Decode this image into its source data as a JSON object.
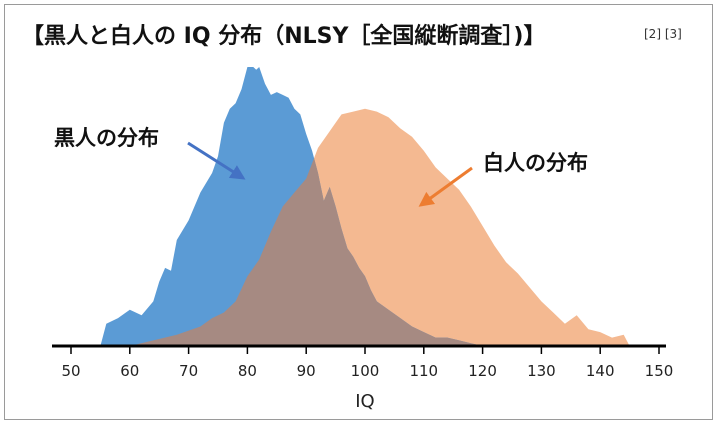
{
  "title": "【黒人と白人の IQ 分布（NLSY［全国縦断調査］)】",
  "references": "[2] [3]",
  "chart_data": {
    "type": "area",
    "title": "【黒人と白人の IQ 分布（NLSY［全国縦断調査］)】",
    "xlabel": "IQ",
    "ylabel": "",
    "xlim": [
      50,
      150
    ],
    "x_ticks": [
      50,
      60,
      70,
      80,
      90,
      100,
      110,
      120,
      130,
      140,
      150
    ],
    "y_axis_shown": false,
    "grid": false,
    "legend": "none",
    "annotations": [
      {
        "text": "黒人の分布",
        "series": "black"
      },
      {
        "text": "白人の分布",
        "series": "white"
      }
    ],
    "colors": {
      "black": "#5b9bd5",
      "white": "#f4b991",
      "overlap": "#a68a82",
      "black_arrow": "#4472c4",
      "white_arrow": "#ed7d31",
      "axis": "#000000"
    },
    "series": [
      {
        "key": "black",
        "x": [
          55,
          56,
          58,
          60,
          62,
          64,
          65,
          66,
          67,
          68,
          70,
          72,
          74,
          75,
          76,
          77,
          78,
          79,
          80,
          81,
          81.5,
          82,
          83,
          84,
          85,
          86,
          87,
          88,
          89,
          90,
          91,
          92,
          93,
          94,
          95,
          96,
          97,
          98,
          99,
          100,
          101,
          102,
          104,
          106,
          108,
          110,
          112,
          114,
          116,
          118,
          120
        ],
        "values": [
          0.0,
          0.08,
          0.1,
          0.13,
          0.11,
          0.16,
          0.23,
          0.28,
          0.27,
          0.38,
          0.45,
          0.55,
          0.62,
          0.68,
          0.8,
          0.85,
          0.87,
          0.92,
          1.0,
          1.0,
          0.99,
          1.0,
          0.94,
          0.9,
          0.91,
          0.9,
          0.89,
          0.85,
          0.83,
          0.76,
          0.7,
          0.62,
          0.52,
          0.57,
          0.5,
          0.42,
          0.35,
          0.32,
          0.28,
          0.25,
          0.2,
          0.16,
          0.13,
          0.1,
          0.07,
          0.05,
          0.03,
          0.03,
          0.02,
          0.01,
          0.0
        ]
      },
      {
        "key": "white",
        "x": [
          60,
          64,
          68,
          72,
          74,
          76,
          78,
          80,
          82,
          84,
          86,
          88,
          90,
          92,
          94,
          96,
          98,
          100,
          102,
          104,
          106,
          108,
          110,
          112,
          114,
          116,
          118,
          120,
          122,
          124,
          126,
          128,
          130,
          132,
          134,
          136,
          138,
          140,
          142,
          144,
          145
        ],
        "values": [
          0.0,
          0.02,
          0.04,
          0.07,
          0.1,
          0.12,
          0.16,
          0.25,
          0.31,
          0.41,
          0.5,
          0.55,
          0.6,
          0.71,
          0.77,
          0.83,
          0.84,
          0.85,
          0.84,
          0.82,
          0.78,
          0.75,
          0.7,
          0.64,
          0.6,
          0.56,
          0.5,
          0.43,
          0.36,
          0.3,
          0.26,
          0.21,
          0.16,
          0.12,
          0.08,
          0.11,
          0.06,
          0.05,
          0.03,
          0.04,
          0.0
        ]
      }
    ]
  }
}
